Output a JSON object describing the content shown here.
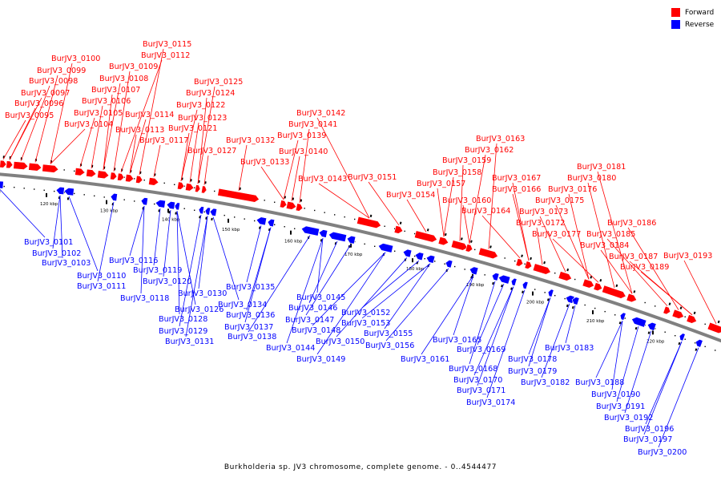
{
  "legend": {
    "forward_label": "Forward",
    "reverse_label": "Reverse",
    "forward_color": "#ff0000",
    "reverse_color": "#0000ff"
  },
  "colors": {
    "backbone": "#808080",
    "tick": "#000000",
    "leader_forward": "#ff0000",
    "leader_reverse": "#0000ff"
  },
  "caption": "Burkholderia sp. JV3 chromosome, complete genome. - 0..4544477",
  "scale_ticks": [
    "120 kbp",
    "130 kbp",
    "140 kbp",
    "150 kbp",
    "160 kbp",
    "170 kbp",
    "180 kbp",
    "190 kbp",
    "200 kbp",
    "210 kbp",
    "220 kbp"
  ],
  "forward_genes": [
    "BurJV3_0095",
    "BurJV3_0096",
    "BurJV3_0097",
    "BurJV3_0098",
    "BurJV3_0099",
    "BurJV3_0100",
    "BurJV3_0104",
    "BurJV3_0105",
    "BurJV3_0106",
    "BurJV3_0107",
    "BurJV3_0108",
    "BurJV3_0109",
    "BurJV3_0112",
    "BurJV3_0113",
    "BurJV3_0114",
    "BurJV3_0115",
    "BurJV3_0117",
    "BurJV3_0121",
    "BurJV3_0122",
    "BurJV3_0123",
    "BurJV3_0124",
    "BurJV3_0125",
    "BurJV3_0127",
    "BurJV3_0132",
    "BurJV3_0133",
    "BurJV3_0139",
    "BurJV3_0140",
    "BurJV3_0141",
    "BurJV3_0142",
    "BurJV3_0143",
    "BurJV3_0151",
    "BurJV3_0154",
    "BurJV3_0157",
    "BurJV3_0158",
    "BurJV3_0159",
    "BurJV3_0160",
    "BurJV3_0162",
    "BurJV3_0163",
    "BurJV3_0164",
    "BurJV3_0166",
    "BurJV3_0167",
    "BurJV3_0172",
    "BurJV3_0173",
    "BurJV3_0175",
    "BurJV3_0176",
    "BurJV3_0177",
    "BurJV3_0180",
    "BurJV3_0181",
    "BurJV3_0184",
    "BurJV3_0185",
    "BurJV3_0186",
    "BurJV3_0187",
    "BurJV3_0189",
    "BurJV3_0193"
  ],
  "reverse_genes": [
    "BurJV3_0101",
    "BurJV3_0102",
    "BurJV3_0103",
    "BurJV3_0110",
    "BurJV3_0111",
    "BurJV3_0116",
    "BurJV3_0118",
    "BurJV3_0119",
    "BurJV3_0120",
    "BurJV3_0126",
    "BurJV3_0128",
    "BurJV3_0129",
    "BurJV3_0130",
    "BurJV3_0131",
    "BurJV3_0134",
    "BurJV3_0135",
    "BurJV3_0136",
    "BurJV3_0137",
    "BurJV3_0138",
    "BurJV3_0144",
    "BurJV3_0145",
    "BurJV3_0146",
    "BurJV3_0147",
    "BurJV3_0148",
    "BurJV3_0149",
    "BurJV3_0150",
    "BurJV3_0152",
    "BurJV3_0153",
    "BurJV3_0155",
    "BurJV3_0156",
    "BurJV3_0161",
    "BurJV3_0165",
    "BurJV3_0168",
    "BurJV3_0169",
    "BurJV3_0170",
    "BurJV3_0171",
    "BurJV3_0174",
    "BurJV3_0178",
    "BurJV3_0179",
    "BurJV3_0182",
    "BurJV3_0183",
    "BurJV3_0188",
    "BurJV3_0190",
    "BurJV3_0191",
    "BurJV3_0192",
    "BurJV3_0196",
    "BurJV3_0197",
    "BurJV3_0200"
  ]
}
